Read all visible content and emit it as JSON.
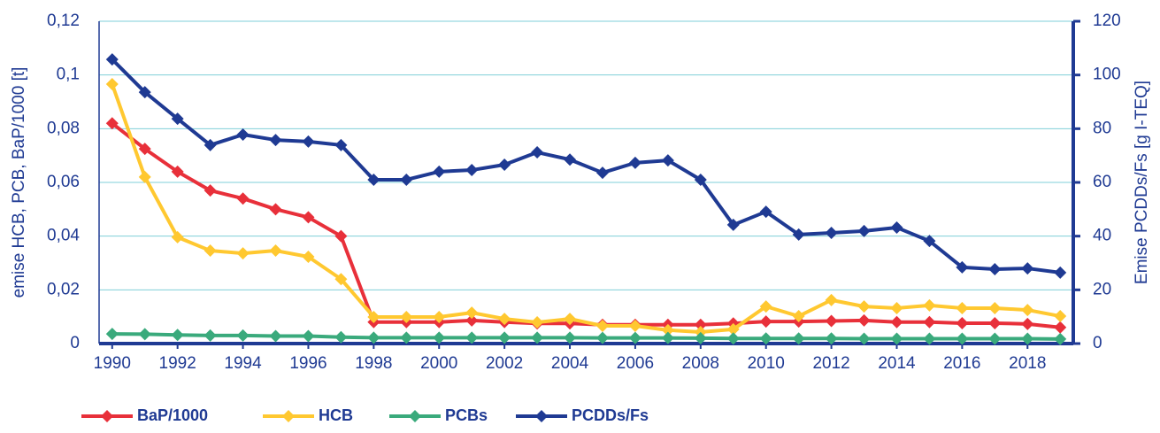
{
  "chart_data": {
    "type": "line",
    "y_label": "emise HCB, PCB, BaP/1000 [t]",
    "y2_label": "Emise PCDDs/Fs [g I-TEQ]",
    "x": [
      1990,
      1991,
      1992,
      1993,
      1994,
      1995,
      1996,
      1997,
      1998,
      1999,
      2000,
      2001,
      2002,
      2003,
      2004,
      2005,
      2006,
      2007,
      2008,
      2009,
      2010,
      2011,
      2012,
      2013,
      2014,
      2015,
      2016,
      2017,
      2018,
      2019
    ],
    "xlim": [
      1989.6,
      2019.4
    ],
    "xticks": [
      1990,
      1992,
      1994,
      1996,
      1998,
      2000,
      2002,
      2004,
      2006,
      2008,
      2010,
      2012,
      2014,
      2016,
      2018
    ],
    "ylim": [
      0,
      0.12
    ],
    "yticks": [
      0,
      {
        "value": 0.02,
        "label": "0,02"
      },
      {
        "value": 0.04,
        "label": "0,04"
      },
      {
        "value": 0.06,
        "label": "0,06"
      },
      {
        "value": 0.08,
        "label": "0,08"
      },
      {
        "value": 0.1,
        "label": "0,1"
      },
      {
        "value": 0.12,
        "label": "0,12"
      }
    ],
    "y2lim": [
      0,
      120
    ],
    "y2ticks": [
      0,
      20,
      40,
      60,
      80,
      100,
      120
    ],
    "grid": true,
    "legend": "bottom-left",
    "series": [
      {
        "name": "BaP/1000",
        "color": "#e8303a",
        "values": [
          0.082,
          0.0725,
          0.064,
          0.057,
          0.054,
          0.05,
          0.047,
          0.04,
          0.008,
          0.008,
          0.008,
          0.0086,
          0.008,
          0.0075,
          0.0075,
          0.007,
          0.007,
          0.007,
          0.007,
          0.0075,
          0.0082,
          0.0082,
          0.0084,
          0.0086,
          0.008,
          0.008,
          0.0076,
          0.0076,
          0.0073,
          0.006
        ]
      },
      {
        "name": "HCB",
        "color": "#ffc830",
        "values": [
          0.0966,
          0.062,
          0.0396,
          0.0346,
          0.0336,
          0.0346,
          0.0323,
          0.024,
          0.0099,
          0.0099,
          0.0099,
          0.0115,
          0.0092,
          0.0079,
          0.0092,
          0.0066,
          0.0066,
          0.005,
          0.0043,
          0.0053,
          0.0138,
          0.0102,
          0.0162,
          0.0138,
          0.0132,
          0.0142,
          0.0132,
          0.0132,
          0.0125,
          0.0102
        ]
      },
      {
        "name": "PCBs",
        "color": "#3aaa7c",
        "values": [
          0.0036,
          0.0035,
          0.0032,
          0.003,
          0.003,
          0.0028,
          0.0028,
          0.0024,
          0.0022,
          0.0022,
          0.0022,
          0.0022,
          0.0022,
          0.0022,
          0.0022,
          0.0021,
          0.0021,
          0.0021,
          0.002,
          0.0019,
          0.0019,
          0.0019,
          0.0019,
          0.0018,
          0.0018,
          0.0018,
          0.0018,
          0.0018,
          0.0018,
          0.0017
        ]
      },
      {
        "name": "PCDDs/Fs",
        "color": "#1f3a93",
        "axis": "y2",
        "values": [
          105.8,
          93.6,
          83.7,
          73.9,
          77.8,
          75.8,
          75.2,
          73.9,
          61,
          61,
          64,
          64.6,
          66.6,
          71.2,
          68.5,
          63.6,
          67.3,
          68.2,
          61,
          44.2,
          49.1,
          40.6,
          41.2,
          41.9,
          43.2,
          38.2,
          28.4,
          27.7,
          28,
          26.4
        ]
      }
    ]
  }
}
